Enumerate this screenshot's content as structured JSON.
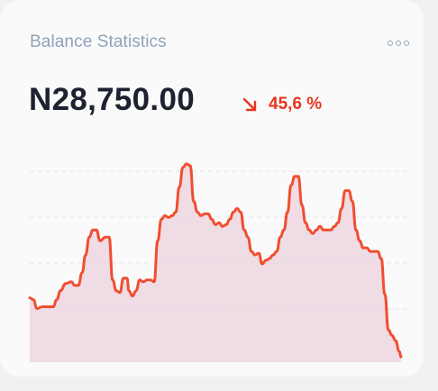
{
  "card": {
    "title": "Balance Statistics",
    "more_icon": "more-horizontal-icon",
    "amount": "N28,750.00",
    "change": {
      "direction": "down",
      "icon": "arrow-down-right-icon",
      "value": "45,6 %",
      "color": "#e8331d"
    }
  },
  "chart_data": {
    "type": "area",
    "grid": "horizontal dashed",
    "colors": {
      "line": "#f04e2f",
      "fill": "#ecd6e0"
    },
    "x": [
      0,
      1,
      2,
      3,
      4,
      5,
      6,
      7,
      8,
      9,
      10,
      11,
      12,
      13,
      14,
      15,
      16,
      17,
      18,
      19,
      20,
      21,
      22,
      23,
      24,
      25,
      26,
      27,
      28,
      29,
      30,
      31,
      32,
      33,
      34,
      35,
      36,
      37,
      38,
      39,
      40,
      41,
      42,
      43,
      44,
      45,
      46,
      47,
      48,
      49,
      50,
      51,
      52,
      53,
      54,
      55,
      56,
      57,
      58,
      59,
      60,
      61,
      62,
      63,
      64,
      65,
      66,
      67,
      68,
      69,
      70,
      71,
      72,
      73,
      74,
      75,
      76,
      77,
      78,
      79,
      80,
      81,
      82,
      83,
      84,
      85,
      86,
      87,
      88,
      89,
      90,
      91,
      92,
      93,
      94,
      95,
      96,
      97,
      98,
      99,
      100,
      101,
      102,
      103,
      104,
      105,
      106,
      107,
      108,
      109,
      110,
      111,
      112,
      113,
      114,
      115,
      116,
      117,
      118,
      119,
      120,
      121,
      122,
      123,
      124,
      125,
      126,
      127,
      128,
      129,
      130,
      131,
      132,
      133,
      134,
      135,
      136,
      137,
      138,
      139,
      140,
      141,
      142,
      143,
      144,
      145,
      146,
      147,
      148,
      149,
      150,
      151,
      152,
      153,
      154,
      155,
      156,
      157,
      158,
      159,
      160,
      161,
      162,
      163,
      164,
      165,
      166,
      167,
      168,
      169,
      170,
      171,
      172,
      173,
      174,
      175,
      176,
      177,
      178,
      179,
      180,
      181,
      182,
      183,
      184,
      185,
      186,
      187,
      188,
      189,
      190,
      191,
      192,
      193,
      194,
      195,
      196,
      197,
      198,
      199,
      200,
      201,
      202,
      203,
      204,
      205,
      206,
      207,
      208,
      209,
      210,
      211,
      212,
      213,
      214,
      215,
      216,
      217,
      218,
      219,
      220,
      221,
      222,
      223,
      224,
      225,
      226,
      227,
      228,
      229,
      230,
      231,
      232,
      233,
      234,
      235,
      236,
      237,
      238,
      239,
      240,
      241,
      242,
      243,
      244,
      245,
      246,
      247,
      248,
      249,
      250,
      251,
      252,
      253,
      254,
      255,
      256,
      257,
      258,
      259,
      260,
      261,
      262,
      263,
      264,
      265,
      266,
      267,
      268,
      269,
      270,
      271,
      272,
      273,
      274,
      275,
      276,
      277,
      278,
      279,
      280,
      281,
      282,
      283,
      284,
      285,
      286,
      287,
      288,
      289,
      290,
      291,
      292,
      293,
      294,
      295,
      296,
      297,
      298,
      299,
      300,
      301,
      302,
      303,
      304,
      305,
      306,
      307,
      308,
      309,
      310,
      311,
      312,
      313,
      314,
      315,
      316,
      317,
      318,
      319,
      320,
      321,
      322,
      323,
      324,
      325,
      326,
      327,
      328,
      329,
      330,
      331,
      332,
      333,
      334,
      335,
      336,
      337,
      338,
      339,
      340,
      341,
      342,
      343,
      344,
      345,
      346,
      347,
      348,
      349,
      350,
      351,
      352,
      353,
      354,
      355,
      356,
      357,
      358,
      359,
      360,
      361,
      362,
      363,
      364,
      365,
      366,
      367,
      368,
      369,
      370,
      371,
      372,
      373,
      374,
      375,
      376,
      377,
      378,
      379,
      380,
      381,
      382,
      383,
      384,
      385,
      386,
      387,
      388,
      389,
      390,
      391,
      392,
      393,
      394,
      395,
      396,
      397,
      398,
      399,
      400,
      401,
      402,
      403,
      404,
      405,
      406,
      407,
      408,
      409,
      410,
      411,
      412
    ],
    "series_points": [
      [
        0,
        36
      ],
      [
        4,
        35
      ],
      [
        8,
        30
      ],
      [
        14,
        31
      ],
      [
        20,
        31
      ],
      [
        26,
        31
      ],
      [
        30,
        35
      ],
      [
        34,
        40
      ],
      [
        40,
        44
      ],
      [
        46,
        45
      ],
      [
        50,
        43
      ],
      [
        54,
        43
      ],
      [
        58,
        50
      ],
      [
        62,
        60
      ],
      [
        66,
        70
      ],
      [
        70,
        74
      ],
      [
        74,
        74
      ],
      [
        78,
        68
      ],
      [
        84,
        70
      ],
      [
        88,
        70
      ],
      [
        92,
        46
      ],
      [
        96,
        40
      ],
      [
        100,
        39
      ],
      [
        104,
        47
      ],
      [
        108,
        47
      ],
      [
        110,
        40
      ],
      [
        114,
        37
      ],
      [
        118,
        40
      ],
      [
        122,
        46
      ],
      [
        126,
        45
      ],
      [
        130,
        46
      ],
      [
        134,
        46
      ],
      [
        138,
        45
      ],
      [
        142,
        68
      ],
      [
        146,
        80
      ],
      [
        150,
        82
      ],
      [
        154,
        81
      ],
      [
        158,
        82
      ],
      [
        162,
        84
      ],
      [
        166,
        98
      ],
      [
        170,
        109
      ],
      [
        174,
        111
      ],
      [
        178,
        110
      ],
      [
        182,
        90
      ],
      [
        186,
        84
      ],
      [
        190,
        82
      ],
      [
        194,
        83
      ],
      [
        198,
        83
      ],
      [
        202,
        80
      ],
      [
        206,
        77
      ],
      [
        210,
        78
      ],
      [
        214,
        76
      ],
      [
        218,
        77
      ],
      [
        222,
        80
      ],
      [
        226,
        84
      ],
      [
        230,
        86
      ],
      [
        234,
        84
      ],
      [
        238,
        74
      ],
      [
        242,
        70
      ],
      [
        246,
        62
      ],
      [
        250,
        60
      ],
      [
        254,
        61
      ],
      [
        258,
        55
      ],
      [
        262,
        57
      ],
      [
        266,
        58
      ],
      [
        270,
        60
      ],
      [
        274,
        62
      ],
      [
        278,
        70
      ],
      [
        282,
        74
      ],
      [
        286,
        84
      ],
      [
        290,
        99
      ],
      [
        294,
        104
      ],
      [
        298,
        104
      ],
      [
        302,
        88
      ],
      [
        306,
        78
      ],
      [
        310,
        74
      ],
      [
        314,
        72
      ],
      [
        318,
        74
      ],
      [
        322,
        76
      ],
      [
        326,
        74
      ],
      [
        330,
        74
      ],
      [
        334,
        74
      ],
      [
        338,
        76
      ],
      [
        342,
        78
      ],
      [
        346,
        86
      ],
      [
        350,
        96
      ],
      [
        354,
        96
      ],
      [
        358,
        90
      ],
      [
        362,
        74
      ],
      [
        366,
        68
      ],
      [
        370,
        64
      ],
      [
        374,
        64
      ],
      [
        378,
        62
      ],
      [
        382,
        62
      ],
      [
        386,
        62
      ],
      [
        390,
        58
      ],
      [
        394,
        38
      ],
      [
        398,
        18
      ],
      [
        402,
        15
      ],
      [
        406,
        12
      ],
      [
        410,
        6
      ],
      [
        412,
        3
      ]
    ],
    "ylim": [
      0,
      118
    ]
  }
}
